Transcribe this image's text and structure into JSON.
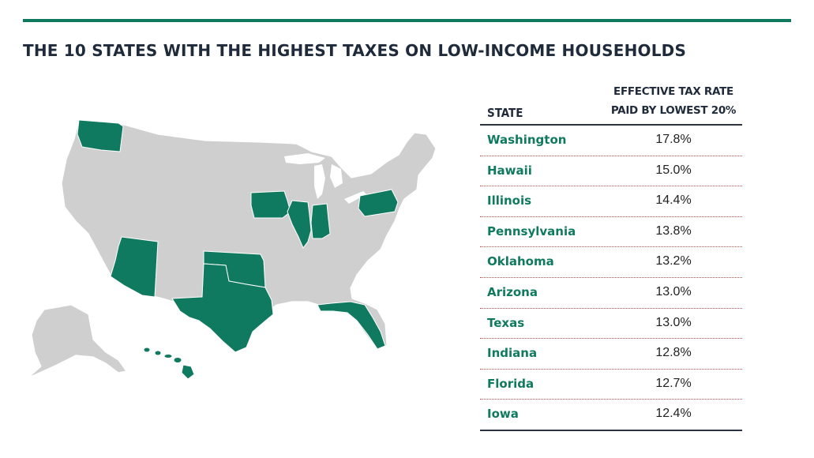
{
  "title": "THE 10 STATES WITH THE HIGHEST TAXES ON LOW-INCOME HOUSEHOLDS",
  "colors": {
    "accent": "#0f7a5f",
    "base_state": "#cfcfcf",
    "row_divider": "#c0504d",
    "text_dark": "#1f2a3a"
  },
  "table": {
    "header_state": "STATE",
    "header_rate_line1": "EFFECTIVE TAX RATE",
    "header_rate_line2": "PAID BY LOWEST 20%",
    "rows": [
      {
        "state": "Washington",
        "rate": "17.8%"
      },
      {
        "state": "Hawaii",
        "rate": "15.0%"
      },
      {
        "state": "Illinois",
        "rate": "14.4%"
      },
      {
        "state": "Pennsylvania",
        "rate": "13.8%"
      },
      {
        "state": "Oklahoma",
        "rate": "13.2%"
      },
      {
        "state": "Arizona",
        "rate": "13.0%"
      },
      {
        "state": "Texas",
        "rate": "13.0%"
      },
      {
        "state": "Indiana",
        "rate": "12.8%"
      },
      {
        "state": "Florida",
        "rate": "12.7%"
      },
      {
        "state": "Iowa",
        "rate": "12.4%"
      }
    ]
  },
  "map": {
    "highlighted_states": [
      "Washington",
      "Hawaii",
      "Illinois",
      "Pennsylvania",
      "Oklahoma",
      "Arizona",
      "Texas",
      "Indiana",
      "Florida",
      "Iowa"
    ]
  }
}
